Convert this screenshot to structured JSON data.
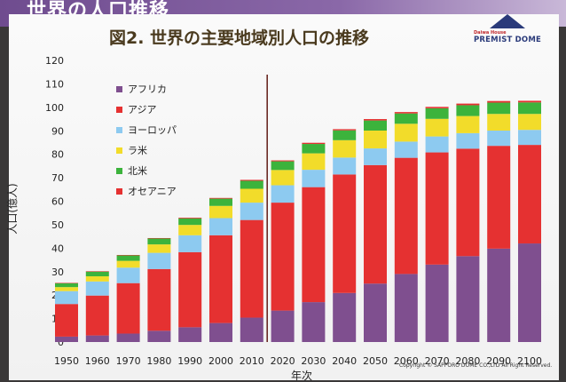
{
  "header": {
    "title": "世界の人口推移"
  },
  "logo": {
    "small": "Daiwa House",
    "main": "PREMIST DOME"
  },
  "copyright": "Copyright © SAPPORO DOME CO.,LTD All Right Reserved.",
  "chart_data": {
    "type": "bar",
    "stacked": true,
    "title": "図2. 世界の主要地域別人口の推移",
    "xlabel": "年次",
    "ylabel": "人口(億人)",
    "ylim": [
      0,
      120
    ],
    "yticks": [
      0,
      10,
      20,
      30,
      40,
      50,
      60,
      70,
      80,
      90,
      100,
      110,
      120
    ],
    "xticks": [
      1950,
      1960,
      1970,
      1980,
      1990,
      2000,
      2010,
      2020,
      2030,
      2040,
      2050,
      2060,
      2070,
      2080,
      2090,
      2100
    ],
    "x": [
      1950,
      1960,
      1970,
      1980,
      1990,
      2000,
      2010,
      2020,
      2030,
      2040,
      2050,
      2060,
      2070,
      2080,
      2090,
      2100
    ],
    "legend_position": "top-left",
    "grid": false,
    "marker_line_year": 2015,
    "series": [
      {
        "name": "アフリカ",
        "color": "#7f4f8f",
        "values": [
          2.3,
          2.8,
          3.6,
          4.8,
          6.3,
          8.1,
          10.4,
          13.4,
          17.0,
          20.9,
          24.9,
          29.0,
          33.0,
          36.6,
          39.8,
          42.0
        ]
      },
      {
        "name": "アジア",
        "color": "#e53131",
        "values": [
          13.9,
          17.0,
          21.5,
          26.3,
          32.0,
          37.4,
          41.6,
          46.0,
          49.0,
          50.5,
          50.5,
          49.5,
          47.8,
          45.8,
          43.8,
          42.0
        ]
      },
      {
        "name": "ヨーロッパ",
        "color": "#8dcaf0",
        "values": [
          5.5,
          6.0,
          6.6,
          6.9,
          7.2,
          7.3,
          7.4,
          7.4,
          7.4,
          7.2,
          7.1,
          6.9,
          6.8,
          6.6,
          6.5,
          6.4
        ]
      },
      {
        "name": "ラ米",
        "color": "#f2dc2a",
        "values": [
          1.7,
          2.2,
          2.9,
          3.6,
          4.4,
          5.2,
          5.9,
          6.5,
          7.0,
          7.4,
          7.6,
          7.6,
          7.5,
          7.3,
          7.1,
          6.8
        ]
      },
      {
        "name": "北米",
        "color": "#3cb33c",
        "values": [
          1.7,
          2.0,
          2.3,
          2.5,
          2.8,
          3.1,
          3.4,
          3.7,
          4.0,
          4.2,
          4.3,
          4.4,
          4.5,
          4.6,
          4.8,
          4.9
        ]
      },
      {
        "name": "オセアニア",
        "color": "#e53131",
        "values": [
          0.1,
          0.2,
          0.2,
          0.2,
          0.3,
          0.3,
          0.4,
          0.4,
          0.5,
          0.5,
          0.6,
          0.6,
          0.6,
          0.7,
          0.7,
          0.7
        ]
      }
    ]
  }
}
